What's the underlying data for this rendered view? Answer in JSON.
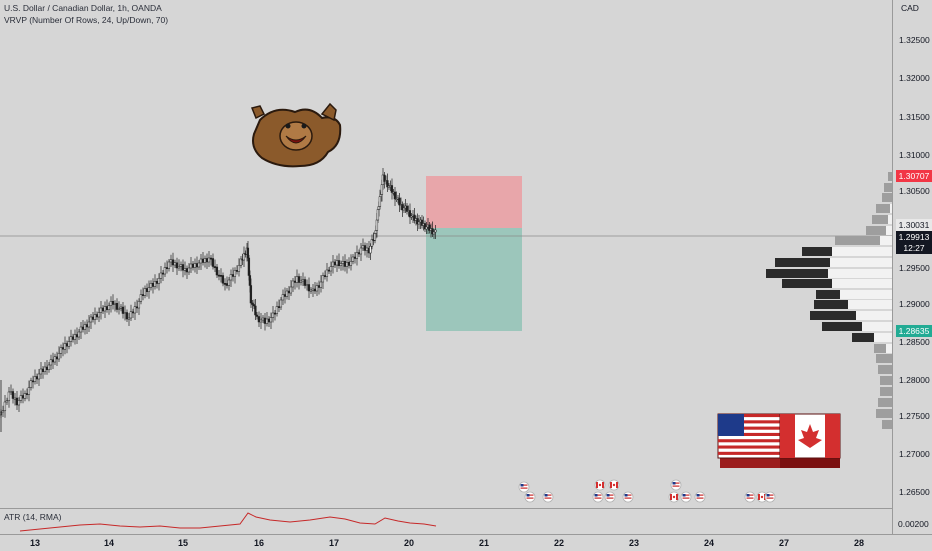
{
  "header": {
    "symbol_line": "U.S. Dollar / Canadian Dollar, 1h, OANDA",
    "indicator_line": "VRVP (Number Of Rows, 24, Up/Down, 70)"
  },
  "price_axis": {
    "currency": "CAD",
    "ticks": [
      "1.32500",
      "1.32000",
      "1.31500",
      "1.31000",
      "1.30500",
      "1.30000",
      "1.29500",
      "1.29000",
      "1.28500",
      "1.28000",
      "1.27500",
      "1.27000",
      "1.26500"
    ],
    "tags": {
      "stop": "1.30707",
      "entry": "1.30031",
      "last_price": "1.29913",
      "countdown": "12:27",
      "target": "1.28635"
    },
    "atr_value": "0.00200"
  },
  "atr_pane": {
    "label": "ATR (14, RMA)"
  },
  "time_axis": {
    "labels": [
      "13",
      "14",
      "15",
      "16",
      "17",
      "20",
      "21",
      "22",
      "23",
      "24",
      "27",
      "28"
    ]
  },
  "colors": {
    "background": "#d6d6d6",
    "candle": "#202020",
    "stop_zone": "#e8a6aa",
    "target_zone": "#9cc6bb",
    "stop_tag": "#f23645",
    "target_tag": "#22ab94",
    "atr_line": "#c62828",
    "volume_up": "#f2f2f2",
    "volume_down": "#2b2b2b",
    "volume_grey": "#9e9e9e"
  },
  "overlays": {
    "bear_icon": "bear-mascot-icon",
    "flags_icon": "usa-canada-puzzle-icon",
    "events": [
      "us-flag-event-icon",
      "canada-flag-event-icon"
    ]
  }
}
